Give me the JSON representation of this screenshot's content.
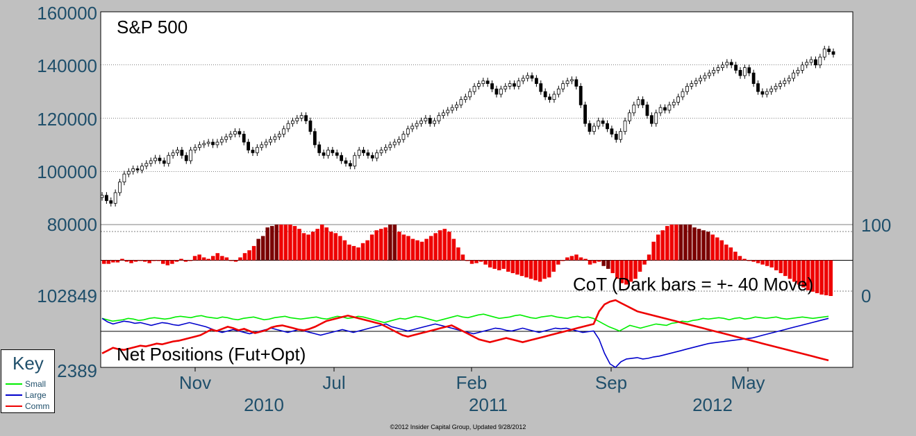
{
  "chart_data": [
    {
      "type": "candlestick",
      "title": "S&P 500",
      "ylim": [
        80000,
        160000
      ],
      "y_ticks": [
        "160000",
        "140000",
        "120000",
        "100000",
        "80000"
      ],
      "gridlines": [
        100000,
        120000,
        140000
      ],
      "x_ticks": [
        "Nov",
        "Jul",
        "Feb",
        "Sep",
        "May"
      ],
      "year_labels": [
        "2010",
        "2011",
        "2012"
      ],
      "close": [
        91000,
        89000,
        88000,
        92000,
        96000,
        99000,
        100000,
        101000,
        100500,
        102000,
        103000,
        104000,
        105000,
        104000,
        103000,
        106000,
        107000,
        108000,
        106000,
        104000,
        108000,
        109000,
        110000,
        110500,
        111000,
        110000,
        111000,
        112000,
        113000,
        114000,
        115000,
        114000,
        111000,
        108000,
        107000,
        109000,
        110000,
        111000,
        112000,
        113000,
        114000,
        116000,
        118000,
        119000,
        120000,
        121000,
        119000,
        115000,
        110000,
        107000,
        106000,
        108000,
        107000,
        106000,
        104000,
        103000,
        102000,
        106000,
        108000,
        107000,
        106000,
        105000,
        107000,
        108000,
        109000,
        110000,
        111000,
        112000,
        114000,
        116000,
        117000,
        118000,
        119000,
        120000,
        118000,
        119000,
        121000,
        122000,
        123000,
        124000,
        125000,
        127000,
        128000,
        130000,
        132000,
        133000,
        134000,
        133000,
        131000,
        129000,
        131000,
        132000,
        133000,
        132000,
        134000,
        135000,
        136000,
        135000,
        133000,
        130000,
        128000,
        127000,
        129000,
        131000,
        133000,
        134000,
        134500,
        132000,
        125000,
        118000,
        115000,
        117000,
        119000,
        118000,
        116000,
        114000,
        112000,
        115000,
        119000,
        122000,
        125000,
        127000,
        125000,
        121000,
        118000,
        122000,
        124000,
        123000,
        125000,
        126000,
        128000,
        130000,
        132000,
        133000,
        134000,
        135000,
        136000,
        137000,
        138000,
        139000,
        140000,
        141000,
        140000,
        138000,
        136000,
        139000,
        137000,
        133000,
        130000,
        129000,
        130000,
        131000,
        132000,
        133000,
        134000,
        135000,
        137000,
        138000,
        140000,
        141000,
        142000,
        140000,
        143000,
        146000,
        145000,
        144000
      ]
    },
    {
      "type": "bar",
      "title": "CoT (Dark bars = +- 40 Move)",
      "ylim": [
        0,
        100
      ],
      "y_ticks": [
        "100",
        "0"
      ],
      "left_ticks": [
        "102849"
      ],
      "midline": 50,
      "values": [
        45,
        45,
        47,
        47,
        52,
        48,
        46,
        48,
        50,
        48,
        46,
        49,
        50,
        45,
        43,
        45,
        48,
        52,
        48,
        50,
        56,
        58,
        54,
        52,
        56,
        60,
        56,
        54,
        50,
        48,
        54,
        60,
        64,
        70,
        80,
        84,
        96,
        98,
        100,
        100,
        100,
        100,
        98,
        94,
        88,
        86,
        90,
        94,
        100,
        96,
        90,
        88,
        84,
        78,
        72,
        70,
        68,
        74,
        78,
        86,
        92,
        94,
        96,
        100,
        100,
        90,
        86,
        84,
        80,
        78,
        76,
        80,
        84,
        88,
        92,
        94,
        90,
        80,
        68,
        58,
        50,
        45,
        46,
        48,
        44,
        40,
        38,
        36,
        38,
        34,
        32,
        30,
        28,
        26,
        24,
        22,
        20,
        24,
        26,
        34,
        44,
        50,
        54,
        56,
        58,
        54,
        52,
        44,
        46,
        48,
        42,
        38,
        32,
        24,
        18,
        16,
        20,
        24,
        34,
        44,
        58,
        76,
        86,
        92,
        98,
        100,
        100,
        100,
        100,
        100,
        96,
        94,
        92,
        90,
        86,
        82,
        78,
        72,
        68,
        62,
        56,
        52,
        50,
        48,
        46,
        44,
        42,
        40,
        36,
        32,
        28,
        24,
        20,
        16,
        12,
        8,
        6,
        4,
        2,
        1,
        0
      ],
      "dark": [
        false,
        false,
        false,
        false,
        false,
        false,
        false,
        false,
        false,
        false,
        false,
        false,
        false,
        false,
        false,
        false,
        false,
        false,
        false,
        false,
        false,
        false,
        false,
        false,
        false,
        false,
        false,
        false,
        false,
        false,
        false,
        false,
        false,
        false,
        true,
        true,
        true,
        true,
        true,
        false,
        false,
        false,
        false,
        false,
        false,
        false,
        false,
        false,
        false,
        false,
        false,
        false,
        false,
        false,
        false,
        false,
        false,
        false,
        false,
        false,
        false,
        false,
        false,
        true,
        true,
        false,
        false,
        false,
        false,
        false,
        false,
        false,
        false,
        false,
        false,
        false,
        false,
        false,
        false,
        false,
        false,
        false,
        false,
        false,
        false,
        false,
        false,
        false,
        false,
        false,
        false,
        false,
        false,
        false,
        false,
        false,
        false,
        false,
        false,
        false,
        false,
        false,
        false,
        false,
        false,
        false,
        false,
        false,
        false,
        false,
        true,
        true,
        false,
        false,
        false,
        false,
        false,
        false,
        false,
        false,
        false,
        false,
        false,
        false,
        false,
        false,
        false,
        true,
        true,
        true,
        true,
        true,
        true,
        true,
        false,
        false,
        false,
        false,
        false,
        false,
        false,
        false,
        false,
        false,
        false,
        false,
        false,
        false,
        false,
        false,
        false,
        false,
        false,
        false,
        false,
        false,
        false,
        false,
        false,
        false,
        false
      ]
    },
    {
      "type": "line",
      "title": "Net Positions (Fut+Opt)",
      "left_ticks": [
        "2389"
      ],
      "series": [
        {
          "name": "Small",
          "color": "#00ee00",
          "values": [
            70,
            68,
            66,
            67,
            68,
            70,
            69,
            67,
            68,
            70,
            71,
            70,
            69,
            70,
            72,
            73,
            72,
            71,
            73,
            74,
            72,
            71,
            70,
            72,
            71,
            69,
            68,
            70,
            71,
            72,
            70,
            68,
            69,
            71,
            72,
            73,
            71,
            70,
            69,
            70,
            71,
            72,
            70,
            69,
            71,
            73,
            72,
            70,
            71,
            73,
            72,
            70,
            68,
            66,
            64,
            66,
            68,
            70,
            69,
            71,
            73,
            72,
            70,
            68,
            66,
            68,
            70,
            72,
            74,
            72,
            71,
            73,
            75,
            76,
            74,
            72,
            70,
            71,
            72,
            74,
            75,
            73,
            71,
            70,
            72,
            73,
            74,
            72,
            71,
            70,
            72,
            73,
            71,
            72,
            70,
            66,
            62,
            58,
            55,
            52,
            56,
            60,
            58,
            56,
            58,
            60,
            62,
            61,
            60,
            63,
            64,
            66,
            65,
            67,
            68,
            70,
            69,
            70,
            71,
            70,
            68,
            70,
            71,
            69,
            70,
            72,
            71,
            70,
            71,
            72,
            70,
            69,
            70,
            71,
            72,
            71,
            70,
            71,
            72,
            73
          ]
        },
        {
          "name": "Large",
          "color": "#0000cc",
          "values": [
            70,
            65,
            62,
            64,
            66,
            65,
            63,
            64,
            62,
            60,
            62,
            64,
            63,
            61,
            60,
            62,
            64,
            62,
            60,
            58,
            55,
            52,
            50,
            52,
            54,
            52,
            50,
            48,
            50,
            52,
            54,
            56,
            54,
            52,
            50,
            52,
            54,
            52,
            50,
            48,
            46,
            48,
            50,
            52,
            54,
            52,
            50,
            52,
            54,
            56,
            58,
            60,
            62,
            58,
            56,
            54,
            52,
            54,
            56,
            58,
            60,
            62,
            60,
            58,
            56,
            54,
            52,
            50,
            48,
            50,
            52,
            54,
            56,
            55,
            53,
            52,
            54,
            56,
            54,
            52,
            50,
            52,
            54,
            56,
            55,
            56,
            54,
            52,
            50,
            51,
            52,
            40,
            20,
            5,
            0,
            8,
            12,
            13,
            14,
            12,
            13,
            15,
            16,
            18,
            20,
            22,
            24,
            26,
            28,
            30,
            32,
            34,
            35,
            36,
            37,
            38,
            39,
            40,
            41,
            42,
            44,
            46,
            48,
            50,
            52,
            54,
            56,
            58,
            60,
            62,
            64,
            66,
            68,
            70
          ]
        },
        {
          "name": "Comm",
          "color": "#ee0000",
          "values": [
            20,
            24,
            28,
            26,
            25,
            27,
            29,
            31,
            30,
            32,
            34,
            33,
            35,
            37,
            38,
            40,
            42,
            44,
            46,
            50,
            54,
            52,
            55,
            58,
            56,
            53,
            55,
            52,
            49,
            51,
            53,
            57,
            59,
            60,
            58,
            56,
            54,
            53,
            55,
            58,
            62,
            66,
            68,
            70,
            72,
            74,
            72,
            70,
            68,
            66,
            64,
            62,
            58,
            54,
            50,
            46,
            44,
            46,
            48,
            50,
            52,
            54,
            56,
            58,
            60,
            56,
            52,
            48,
            44,
            40,
            38,
            36,
            38,
            40,
            42,
            40,
            38,
            36,
            38,
            40,
            42,
            44,
            46,
            48,
            50,
            52,
            54,
            56,
            58,
            60,
            62,
            80,
            90,
            94,
            96,
            92,
            88,
            84,
            80,
            78,
            76,
            74,
            72,
            70,
            68,
            66,
            64,
            62,
            60,
            58,
            56,
            54,
            52,
            50,
            48,
            46,
            44,
            42,
            40,
            38,
            36,
            34,
            32,
            30,
            28,
            26,
            24,
            22,
            20,
            18,
            16,
            14,
            12,
            10
          ]
        }
      ]
    }
  ],
  "key": {
    "title": "Key",
    "items": [
      {
        "label": "Small",
        "color": "#00ee00"
      },
      {
        "label": "Large",
        "color": "#0000cc"
      },
      {
        "label": "Comm",
        "color": "#ee0000"
      }
    ]
  },
  "footer": "©2012 Insider Capital Group, Updated 9/28/2012"
}
